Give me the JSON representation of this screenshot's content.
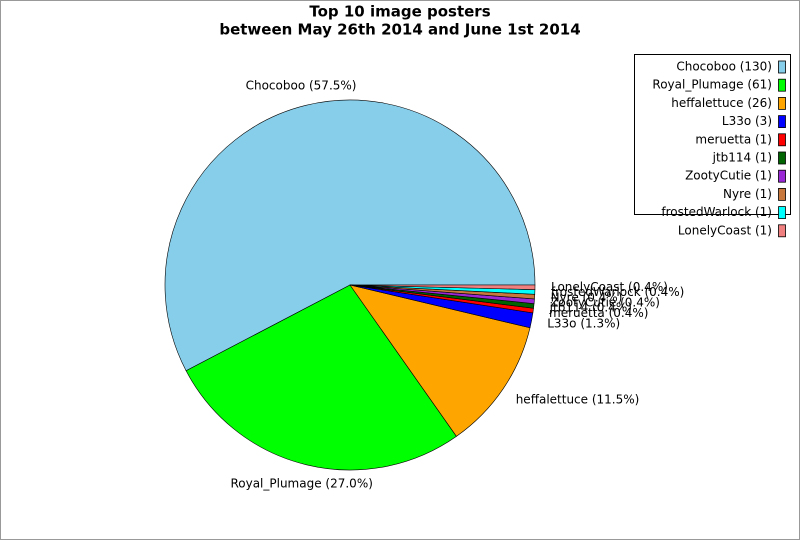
{
  "chart_data": {
    "type": "pie",
    "title": [
      "Top 10 image posters",
      "between May 26th 2014 and June 1st 2014"
    ],
    "categories": [
      "Chocoboo",
      "Royal_Plumage",
      "heffalettuce",
      "L33o",
      "meruetta",
      "jtb114",
      "ZootyCutie",
      "Nyre",
      "frostedWarlock",
      "LonelyCoast"
    ],
    "values": [
      57.5,
      27.0,
      11.5,
      1.3,
      0.4,
      0.4,
      0.4,
      0.4,
      0.4,
      0.4
    ],
    "value_labels": [
      "Chocoboo (57.5%)",
      "Royal_Plumage (27.0%)",
      "heffalettuce (11.5%)",
      "L33o (1.3%)",
      "meruetta (0.4%)",
      "jtb114 (0.4%)",
      "ZootyCutie (0.4%)",
      "Nyre (0.4%)",
      "frostedWarlock (0.4%)",
      "LonelyCoast (0.4%)"
    ],
    "legend": [
      "Chocoboo (130)",
      "Royal_Plumage (61)",
      "heffalettuce (26)",
      "L33o (3)",
      "meruetta (1)",
      "jtb114 (1)",
      "ZootyCutie (1)",
      "Nyre (1)",
      "frostedWarlock (1)",
      "LonelyCoast (1)"
    ],
    "colors": [
      "#87ceeb",
      "#00ff00",
      "#ffa500",
      "#0000ff",
      "#ff0000",
      "#006400",
      "#9a28d4",
      "#c8783c",
      "#00ffff",
      "#f08080"
    ],
    "legend_position": "upper right"
  }
}
